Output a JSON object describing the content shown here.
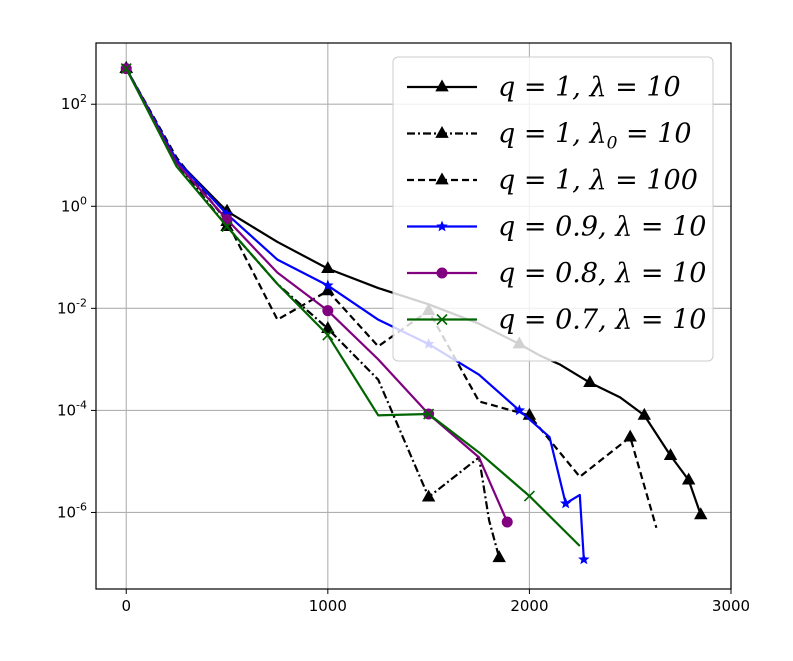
{
  "chart_data": {
    "type": "line",
    "title": "",
    "xlabel": "",
    "ylabel": "",
    "xlim": [
      -150,
      3000
    ],
    "ylim_log10": [
      -7.5,
      3.2
    ],
    "yscale": "log",
    "grid": true,
    "legend_position": "top-right",
    "x_ticks": [
      {
        "value": 0,
        "label": "0"
      },
      {
        "value": 1000,
        "label": "1000"
      },
      {
        "value": 2000,
        "label": "2000"
      },
      {
        "value": 3000,
        "label": "3000"
      }
    ],
    "y_ticks": [
      {
        "exp": 2,
        "base": "10",
        "sup": "2"
      },
      {
        "exp": 0,
        "base": "10",
        "sup": "0"
      },
      {
        "exp": -2,
        "base": "10",
        "sup": "-2"
      },
      {
        "exp": -4,
        "base": "10",
        "sup": "-4"
      },
      {
        "exp": -6,
        "base": "10",
        "sup": "-6"
      }
    ],
    "series": [
      {
        "name": "q = 1, λ = 10",
        "color": "#000000",
        "linestyle": "solid",
        "marker": "triangle",
        "x": [
          0,
          250,
          500,
          750,
          1000,
          1250,
          1500,
          1750,
          1950,
          2050,
          2150,
          2300,
          2450,
          2570,
          2700,
          2790,
          2850
        ],
        "y": [
          500,
          8,
          0.8,
          0.2,
          0.06,
          0.025,
          0.012,
          0.005,
          0.002,
          0.0012,
          0.0008,
          0.00035,
          0.00018,
          8e-05,
          1.3e-05,
          4.3e-06,
          9e-07
        ],
        "marker_indices": [
          0,
          2,
          4,
          8,
          11,
          13,
          14,
          15,
          16
        ]
      },
      {
        "name": "q = 1, λ0 = 10",
        "color": "#000000",
        "linestyle": "dashdot",
        "marker": "triangle",
        "x": [
          0,
          250,
          500,
          750,
          1000,
          1250,
          1500,
          1750,
          1800,
          1850
        ],
        "y": [
          500,
          7,
          0.4,
          0.03,
          0.004,
          0.0004,
          2e-06,
          1.2e-05,
          7e-07,
          1.3e-07
        ],
        "marker_indices": [
          0,
          2,
          4,
          6,
          9
        ]
      },
      {
        "name": "q = 1, λ = 100",
        "color": "#000000",
        "linestyle": "dashed",
        "marker": "triangle",
        "x": [
          0,
          250,
          500,
          750,
          1000,
          1250,
          1500,
          1750,
          2000,
          2250,
          2500,
          2630
        ],
        "y": [
          500,
          9,
          0.5,
          0.006,
          0.022,
          0.0018,
          0.009,
          0.00015,
          8e-05,
          5e-06,
          3e-05,
          5e-07
        ],
        "marker_indices": [
          0,
          2,
          4,
          6,
          8,
          10
        ]
      },
      {
        "name": "q = 0.9, λ = 10",
        "color": "#0000ff",
        "linestyle": "solid",
        "marker": "star",
        "x": [
          0,
          250,
          500,
          750,
          1000,
          1250,
          1500,
          1750,
          1950,
          2100,
          2180,
          2250,
          2270
        ],
        "y": [
          500,
          8,
          0.7,
          0.09,
          0.028,
          0.006,
          0.002,
          0.0005,
          0.0001,
          3e-05,
          1.5e-06,
          2.2e-06,
          1.2e-07
        ],
        "marker_indices": [
          0,
          2,
          4,
          6,
          8,
          10,
          12
        ]
      },
      {
        "name": "q = 0.8, λ = 10",
        "color": "#800080",
        "linestyle": "solid",
        "marker": "circle",
        "x": [
          0,
          250,
          500,
          750,
          1000,
          1250,
          1500,
          1750,
          1890
        ],
        "y": [
          500,
          7,
          0.55,
          0.05,
          0.009,
          0.001,
          8.5e-05,
          1.2e-05,
          6.5e-07
        ],
        "marker_indices": [
          0,
          2,
          4,
          6,
          8
        ]
      },
      {
        "name": "q = 0.7, λ = 10",
        "color": "#006400",
        "linestyle": "solid",
        "marker": "x",
        "x": [
          0,
          250,
          500,
          750,
          1000,
          1250,
          1500,
          1750,
          2000,
          2250
        ],
        "y": [
          500,
          6,
          0.4,
          0.03,
          0.003,
          8e-05,
          8.5e-05,
          1.5e-05,
          2.1e-06,
          2.2e-07
        ],
        "marker_indices": [
          0,
          2,
          4,
          6,
          8
        ]
      }
    ],
    "legend": [
      {
        "q": "1",
        "lam": "λ",
        "sub": "",
        "val": "10"
      },
      {
        "q": "1",
        "lam": "λ",
        "sub": "0",
        "val": "10"
      },
      {
        "q": "1",
        "lam": "λ",
        "sub": "",
        "val": "100"
      },
      {
        "q": "0.9",
        "lam": "λ",
        "sub": "",
        "val": "10"
      },
      {
        "q": "0.8",
        "lam": "λ",
        "sub": "",
        "val": "10"
      },
      {
        "q": "0.7",
        "lam": "λ",
        "sub": "",
        "val": "10"
      }
    ]
  }
}
